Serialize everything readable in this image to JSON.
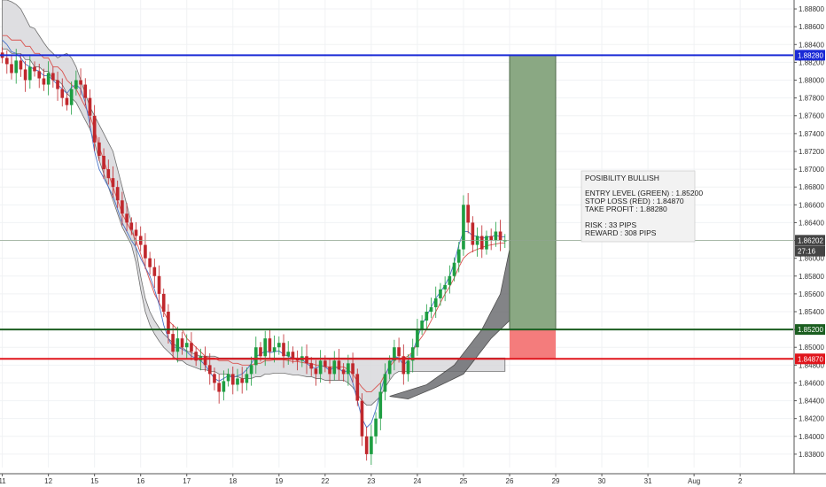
{
  "chart_data": {
    "type": "candlestick",
    "symbol_pair_hint": "",
    "y_axis": {
      "min": 1.8365,
      "max": 1.889,
      "ticks": [
        "1.88800",
        "1.88600",
        "1.88400",
        "1.88200",
        "1.88000",
        "1.87800",
        "1.87600",
        "1.87400",
        "1.87200",
        "1.87000",
        "1.86800",
        "1.86600",
        "1.86400",
        "1.86200",
        "1.86000",
        "1.85800",
        "1.85600",
        "1.85400",
        "1.85200",
        "1.85000",
        "1.84800",
        "1.84600",
        "1.84400",
        "1.84200",
        "1.84000",
        "1.83800"
      ],
      "tick_values": [
        1.888,
        1.886,
        1.884,
        1.882,
        1.88,
        1.878,
        1.876,
        1.874,
        1.872,
        1.87,
        1.868,
        1.866,
        1.864,
        1.862,
        1.86,
        1.858,
        1.856,
        1.854,
        1.852,
        1.85,
        1.848,
        1.846,
        1.844,
        1.842,
        1.84,
        1.838
      ]
    },
    "x_axis": {
      "labels": [
        "11",
        "12",
        "15",
        "16",
        "17",
        "18",
        "19",
        "22",
        "23",
        "24",
        "25",
        "26",
        "29",
        "30",
        "31",
        "Aug",
        "2"
      ],
      "label_index": [
        0,
        10,
        20,
        30,
        40,
        50,
        60,
        70,
        80,
        90,
        100,
        110,
        120,
        130,
        140,
        150,
        160
      ],
      "total_slots": 172
    },
    "price_tags": [
      {
        "label": "1.88280",
        "value": 1.8828,
        "color": "#1a2ad6"
      },
      {
        "label": "1.86202",
        "value": 1.86202,
        "color": "#444444"
      },
      {
        "label": "27:16",
        "value": 1.8608,
        "color": "#444444"
      },
      {
        "label": "1.85200",
        "value": 1.852,
        "color": "#1b5e20"
      },
      {
        "label": "1.84870",
        "value": 1.8487,
        "color": "#e0151c"
      }
    ],
    "levels": [
      {
        "name": "take-profit",
        "value": 1.8828,
        "color": "#1a2ad6"
      },
      {
        "name": "current",
        "value": 1.86202,
        "color": "#8fa68f"
      },
      {
        "name": "entry",
        "value": 1.852,
        "color": "#1b5e20"
      },
      {
        "name": "stop-loss",
        "value": 1.8487,
        "color": "#e0151c"
      }
    ],
    "position": {
      "from_index": 110,
      "to_index": 120,
      "entry": 1.852,
      "stop": 1.8487,
      "target": 1.8828,
      "profit_color": "#8aa883",
      "loss_color": "#f47c7c"
    },
    "close_series": [
      1.8825,
      1.8818,
      1.8808,
      1.8822,
      1.8812,
      1.88,
      1.8815,
      1.881,
      1.8802,
      1.8795,
      1.8808,
      1.88,
      1.879,
      1.878,
      1.8772,
      1.879,
      1.88,
      1.8795,
      1.878,
      1.876,
      1.873,
      1.8715,
      1.87,
      1.869,
      1.868,
      1.8665,
      1.865,
      1.864,
      1.8632,
      1.8625,
      1.8615,
      1.86,
      1.859,
      1.858,
      1.856,
      1.854,
      1.8515,
      1.8495,
      1.851,
      1.85,
      1.8505,
      1.8495,
      1.8485,
      1.849,
      1.848,
      1.847,
      1.846,
      1.845,
      1.8462,
      1.847,
      1.8458,
      1.8465,
      1.846,
      1.847,
      1.848,
      1.85,
      1.849,
      1.851,
      1.8495,
      1.85,
      1.8505,
      1.849,
      1.8495,
      1.8488,
      1.8485,
      1.849,
      1.8482,
      1.8476,
      1.847,
      1.8485,
      1.8478,
      1.847,
      1.8485,
      1.8475,
      1.847,
      1.8482,
      1.847,
      1.844,
      1.84,
      1.838,
      1.84,
      1.842,
      1.845,
      1.847,
      1.8485,
      1.85,
      1.849,
      1.847,
      1.8485,
      1.85,
      1.852,
      1.853,
      1.854,
      1.8545,
      1.8555,
      1.8565,
      1.857,
      1.858,
      1.8595,
      1.861,
      1.866,
      1.864,
      1.8615,
      1.8625,
      1.861,
      1.8625,
      1.862,
      1.863,
      1.862,
      1.862
    ],
    "kijun_series": [
      1.885,
      1.885,
      1.8845,
      1.8845,
      1.8845,
      1.8838,
      1.8838,
      1.883,
      1.883,
      1.8825,
      1.8825,
      1.8815,
      1.8815,
      1.881,
      1.88,
      1.8795,
      1.879,
      1.878,
      1.877,
      1.876,
      1.8745,
      1.8725,
      1.871,
      1.8695,
      1.868,
      1.8665,
      1.865,
      1.864,
      1.863,
      1.862,
      1.8605,
      1.859,
      1.8575,
      1.856,
      1.855,
      1.854,
      1.853,
      1.8525,
      1.852,
      1.852,
      1.851,
      1.8505,
      1.85,
      1.8495,
      1.849,
      1.8488,
      1.8488,
      1.8485,
      1.8485,
      1.8485,
      1.8482,
      1.8482,
      1.848,
      1.848,
      1.848,
      1.8482,
      1.8482,
      1.8485,
      1.8485,
      1.8486,
      1.8486,
      1.8486,
      1.8485,
      1.8484,
      1.8484,
      1.8483,
      1.8482,
      1.8482,
      1.848,
      1.848,
      1.8478,
      1.8478,
      1.8478,
      1.8478,
      1.8478,
      1.8475,
      1.847,
      1.8462,
      1.8455,
      1.845,
      1.845,
      1.8455,
      1.846,
      1.847,
      1.8478,
      1.8485,
      1.8488,
      1.8488,
      1.849,
      1.8495,
      1.8505,
      1.8512,
      1.852,
      1.853,
      1.854,
      1.855,
      1.856,
      1.8568,
      1.8578,
      1.859,
      1.86,
      1.8605,
      1.8608,
      1.861,
      1.8612,
      1.8614,
      1.8615,
      1.8616,
      1.8617,
      1.8617
    ],
    "tenkan_series": [
      1.8845,
      1.884,
      1.8832,
      1.883,
      1.8825,
      1.8818,
      1.8815,
      1.8812,
      1.881,
      1.8805,
      1.8805,
      1.88,
      1.8795,
      1.879,
      1.8785,
      1.8792,
      1.8795,
      1.879,
      1.8775,
      1.875,
      1.872,
      1.87,
      1.869,
      1.868,
      1.867,
      1.8655,
      1.864,
      1.863,
      1.862,
      1.8612,
      1.86,
      1.859,
      1.858,
      1.8565,
      1.8548,
      1.8525,
      1.851,
      1.85,
      1.85,
      1.8498,
      1.8495,
      1.849,
      1.8488,
      1.8485,
      1.848,
      1.8472,
      1.8465,
      1.8462,
      1.8465,
      1.8468,
      1.8466,
      1.8468,
      1.847,
      1.8475,
      1.8482,
      1.849,
      1.8492,
      1.8496,
      1.8494,
      1.8495,
      1.8496,
      1.8492,
      1.849,
      1.8488,
      1.8486,
      1.8486,
      1.8482,
      1.8478,
      1.8476,
      1.848,
      1.8478,
      1.8474,
      1.8478,
      1.8476,
      1.8472,
      1.8474,
      1.846,
      1.844,
      1.842,
      1.841,
      1.8415,
      1.843,
      1.845,
      1.8468,
      1.848,
      1.849,
      1.8488,
      1.848,
      1.8485,
      1.8495,
      1.851,
      1.8525,
      1.8535,
      1.8545,
      1.8555,
      1.8562,
      1.857,
      1.858,
      1.8595,
      1.8615,
      1.863,
      1.863,
      1.8625,
      1.8625,
      1.8622,
      1.8624,
      1.8624,
      1.8626,
      1.8624,
      1.8624
    ],
    "cloud_upper": [
      1.889,
      1.889,
      1.8888,
      1.8885,
      1.888,
      1.887,
      1.886,
      1.8858,
      1.885,
      1.8842,
      1.8835,
      1.883,
      1.8825,
      1.8828,
      1.883,
      1.8825,
      1.8815,
      1.88,
      1.8785,
      1.877,
      1.876,
      1.875,
      1.874,
      1.873,
      1.872,
      1.87,
      1.868,
      1.866,
      1.864,
      1.861,
      1.858,
      1.8555,
      1.854,
      1.853,
      1.8522,
      1.8515,
      1.851,
      1.8505,
      1.85,
      1.85,
      1.8496,
      1.8494,
      1.8492,
      1.849,
      1.849,
      1.849,
      1.849,
      1.8488,
      1.8488,
      1.8488,
      1.8488,
      1.8488,
      1.8488,
      1.8488,
      1.8488,
      1.8488,
      1.8488,
      1.8488,
      1.8488,
      1.8488,
      1.8488,
      1.8488,
      1.8488,
      1.8488,
      1.8488,
      1.8488,
      1.8488,
      1.8488,
      1.8488,
      1.8488,
      1.8488,
      1.8488,
      1.8488,
      1.8488,
      1.8488,
      1.8488,
      1.8488,
      1.8488,
      1.8488,
      1.8488,
      1.8488,
      1.8488,
      1.8488,
      1.8488,
      1.8488,
      1.8488,
      1.8488,
      1.8488,
      1.8488,
      1.8488,
      1.8488,
      1.8488,
      1.8488,
      1.8488,
      1.8488,
      1.8488,
      1.8488,
      1.8488,
      1.8488,
      1.8488,
      1.8488,
      1.8488,
      1.8488,
      1.8488,
      1.8488,
      1.8488,
      1.8488,
      1.8488,
      1.8488,
      1.8488
    ],
    "note": {
      "title": "POSIBILITY BULLISH",
      "lines": [
        "ENTRY LEVEL (GREEN) : 1.85200",
        "STOP LOSS (RED) : 1.84870",
        "TAKE PROFIT : 1.88280",
        "",
        "RISK : 33 PIPS",
        "REWARD : 308 PIPS"
      ]
    },
    "grid": true,
    "legend": "none"
  }
}
